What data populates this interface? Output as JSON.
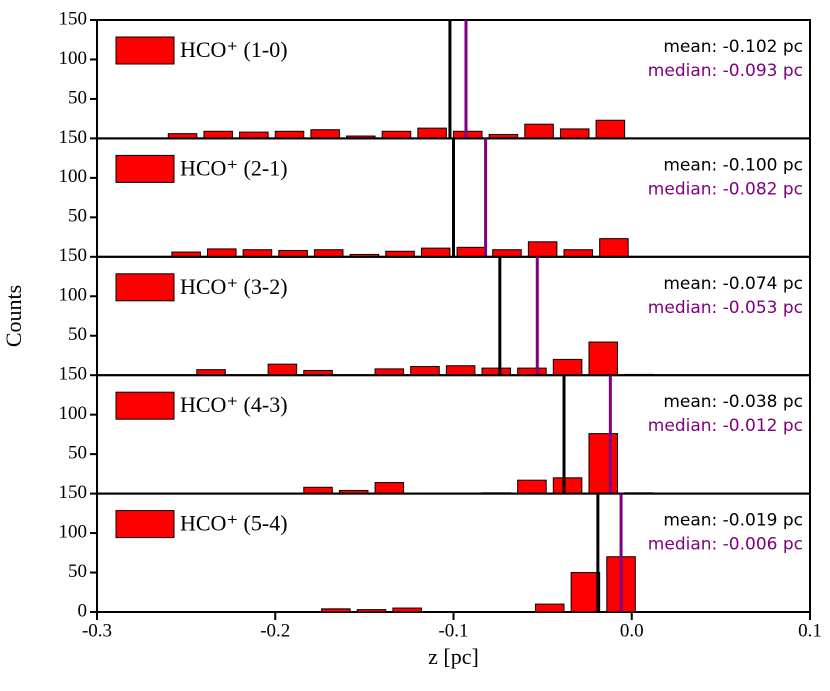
{
  "chart_data": [
    {
      "type": "histogram",
      "ylabel": "Counts",
      "name": "HCO⁺ (1-0)",
      "color": "#ff0000",
      "bins": [
        -0.262,
        -0.242,
        -0.222,
        -0.202,
        -0.182,
        -0.162,
        -0.142,
        -0.122,
        -0.102,
        -0.082,
        -0.062,
        -0.042,
        -0.022,
        -0.002
      ],
      "values": [
        6,
        9,
        8,
        9,
        11,
        3,
        9,
        13,
        9,
        5,
        18,
        12,
        23
      ],
      "mean": {
        "value": -0.102,
        "label": "mean: -0.102 pc"
      },
      "median": {
        "value": -0.093,
        "label": "median: -0.093 pc"
      },
      "xlim": [
        -0.3,
        0.1
      ],
      "ylim": [
        0,
        150
      ],
      "yticks": [
        50,
        100,
        150
      ]
    },
    {
      "type": "histogram",
      "name": "HCO⁺ (2-1)",
      "color": "#ff0000",
      "bins": [
        -0.26,
        -0.24,
        -0.22,
        -0.2,
        -0.18,
        -0.16,
        -0.14,
        -0.12,
        -0.1,
        -0.08,
        -0.06,
        -0.04,
        -0.02,
        0.0
      ],
      "values": [
        6,
        10,
        9,
        8,
        9,
        3,
        7,
        11,
        12,
        9,
        19,
        9,
        23
      ],
      "mean": {
        "value": -0.1,
        "label": "mean: -0.100 pc"
      },
      "median": {
        "value": -0.082,
        "label": "median: -0.082 pc"
      },
      "xlim": [
        -0.3,
        0.1
      ],
      "ylim": [
        0,
        150
      ],
      "yticks": [
        50,
        100,
        150
      ]
    },
    {
      "type": "histogram",
      "name": "HCO⁺ (3-2)",
      "color": "#ff0000",
      "bins": [
        -0.246,
        -0.226,
        -0.206,
        -0.186,
        -0.166,
        -0.146,
        -0.126,
        -0.106,
        -0.086,
        -0.066,
        -0.046,
        -0.026,
        -0.006,
        0.014
      ],
      "values": [
        7,
        0,
        14,
        6,
        0,
        8,
        11,
        12,
        9,
        9,
        20,
        42,
        1
      ],
      "mean": {
        "value": -0.074,
        "label": "mean: -0.074 pc"
      },
      "median": {
        "value": -0.053,
        "label": "median: -0.053 pc"
      },
      "xlim": [
        -0.3,
        0.1
      ],
      "ylim": [
        0,
        150
      ],
      "yticks": [
        50,
        100,
        150
      ]
    },
    {
      "type": "histogram",
      "name": "HCO⁺ (4-3)",
      "color": "#ff0000",
      "bins": [
        -0.186,
        -0.166,
        -0.146,
        -0.126,
        -0.106,
        -0.086,
        -0.066,
        -0.046,
        -0.026,
        -0.006,
        0.014
      ],
      "values": [
        8,
        4,
        14,
        0,
        0,
        1,
        17,
        20,
        76,
        1
      ],
      "mean": {
        "value": -0.038,
        "label": "mean: -0.038 pc"
      },
      "median": {
        "value": -0.012,
        "label": "median: -0.012 pc"
      },
      "xlim": [
        -0.3,
        0.1
      ],
      "ylim": [
        0,
        150
      ],
      "yticks": [
        50,
        100,
        150
      ]
    },
    {
      "type": "histogram",
      "name": "HCO⁺ (5-4)",
      "color": "#ff0000",
      "xlabel": "z [pc]",
      "bins": [
        -0.176,
        -0.156,
        -0.136,
        -0.116,
        -0.096,
        -0.076,
        -0.056,
        -0.036,
        -0.016,
        0.004
      ],
      "values": [
        4,
        3,
        5,
        0,
        0,
        0,
        10,
        50,
        70
      ],
      "mean": {
        "value": -0.019,
        "label": "mean: -0.019 pc"
      },
      "median": {
        "value": -0.006,
        "label": "median: -0.006 pc"
      },
      "xlim": [
        -0.3,
        0.1
      ],
      "ylim": [
        0,
        150
      ],
      "yticks": [
        0,
        50,
        100,
        150
      ],
      "xticks": [
        -0.3,
        -0.2,
        -0.1,
        {
          "value": 0,
          "label": "0.0"
        },
        0.1
      ]
    }
  ]
}
